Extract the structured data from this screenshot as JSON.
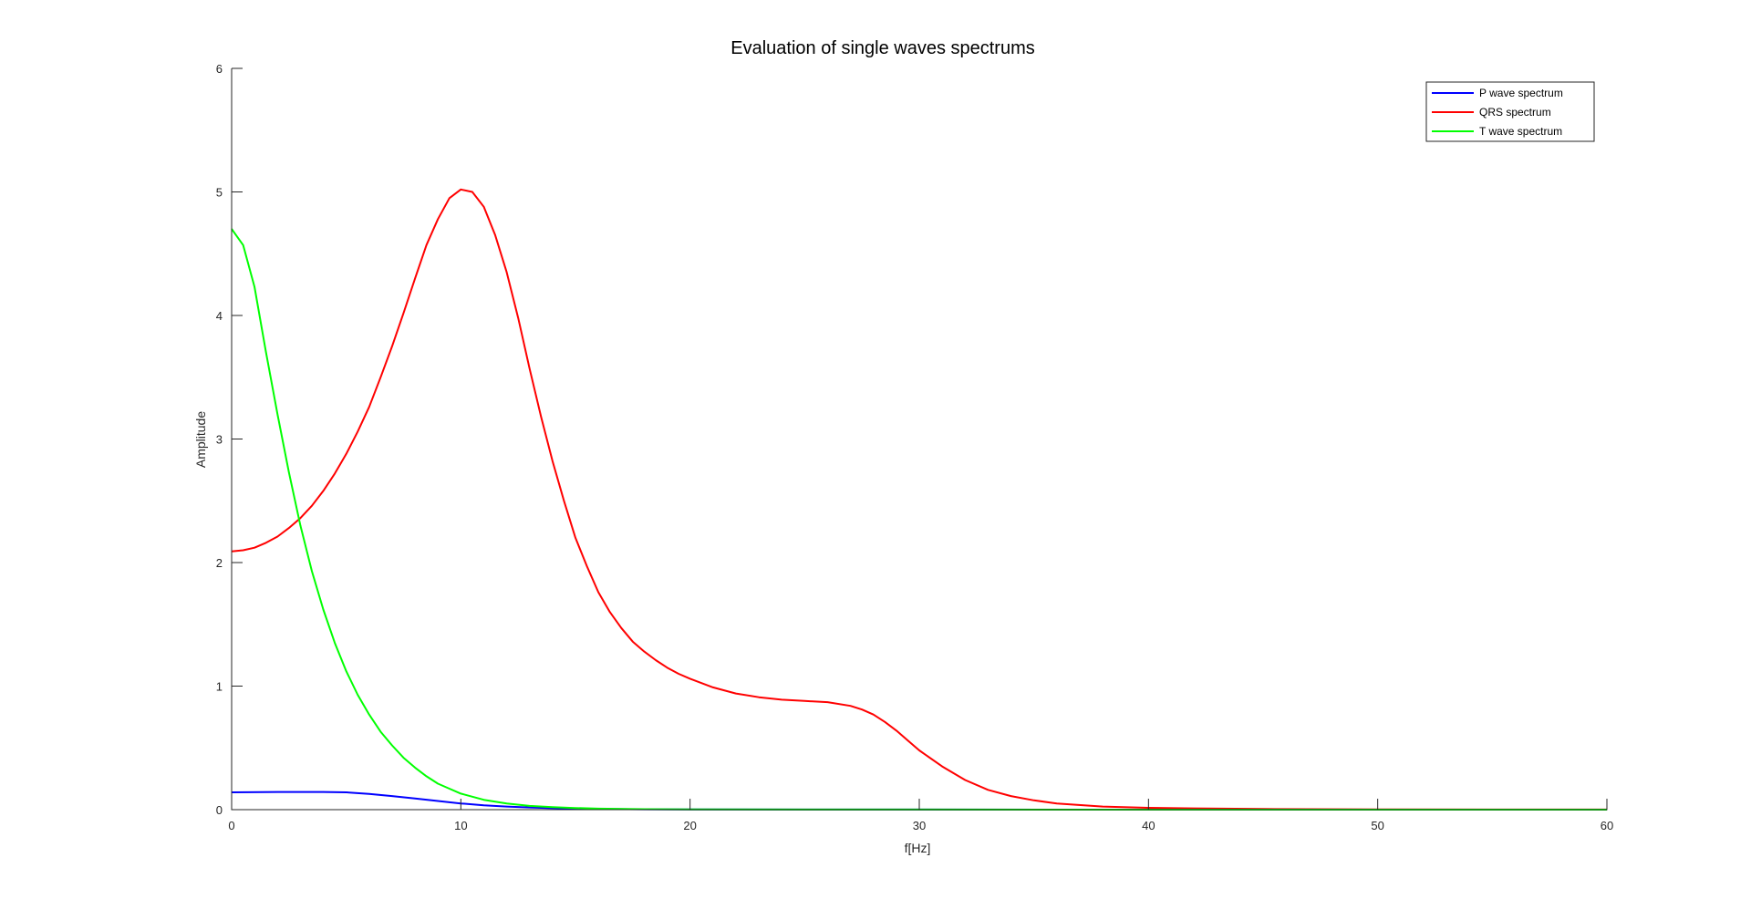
{
  "chart_data": {
    "type": "line",
    "title": "Evaluation of single waves spectrums",
    "xlabel": "f[Hz]",
    "ylabel": "Amplitude",
    "xlim": [
      0,
      60
    ],
    "ylim": [
      0,
      6
    ],
    "xticks": [
      0,
      10,
      20,
      30,
      40,
      50,
      60
    ],
    "yticks": [
      0,
      1,
      2,
      3,
      4,
      5,
      6
    ],
    "grid": false,
    "legend_position": "top-right",
    "series": [
      {
        "name": "P wave spectrum",
        "color": "#0000ff",
        "x": [
          0,
          2,
          4,
          5,
          6,
          7,
          8,
          9,
          10,
          11,
          12,
          13,
          14,
          15,
          16,
          18,
          20,
          25,
          30,
          40,
          50,
          60
        ],
        "y": [
          0.14,
          0.143,
          0.143,
          0.14,
          0.128,
          0.11,
          0.09,
          0.07,
          0.05,
          0.035,
          0.025,
          0.018,
          0.012,
          0.008,
          0.005,
          0.003,
          0.002,
          0.001,
          0.0005,
          0,
          0,
          0
        ]
      },
      {
        "name": "QRS spectrum",
        "color": "#ff0000",
        "x": [
          0,
          0.5,
          1,
          1.5,
          2,
          2.5,
          3,
          3.5,
          4,
          4.5,
          5,
          5.5,
          6,
          6.5,
          7,
          7.5,
          8,
          8.5,
          9,
          9.5,
          10,
          10.5,
          11,
          11.5,
          12,
          12.5,
          13,
          13.5,
          14,
          14.5,
          15,
          15.5,
          16,
          16.5,
          17,
          17.5,
          18,
          18.5,
          19,
          19.5,
          20,
          21,
          22,
          23,
          24,
          25,
          26,
          27,
          27.5,
          28,
          28.5,
          29,
          29.5,
          30,
          31,
          32,
          33,
          34,
          35,
          36,
          38,
          40,
          42,
          45,
          50,
          55,
          60
        ],
        "y": [
          2.09,
          2.1,
          2.12,
          2.16,
          2.21,
          2.28,
          2.36,
          2.46,
          2.58,
          2.72,
          2.88,
          3.06,
          3.26,
          3.5,
          3.75,
          4.02,
          4.3,
          4.57,
          4.78,
          4.95,
          5.02,
          5.0,
          4.88,
          4.65,
          4.35,
          3.98,
          3.57,
          3.18,
          2.82,
          2.5,
          2.2,
          1.97,
          1.76,
          1.6,
          1.47,
          1.36,
          1.28,
          1.21,
          1.15,
          1.1,
          1.06,
          0.99,
          0.94,
          0.91,
          0.89,
          0.88,
          0.87,
          0.84,
          0.81,
          0.77,
          0.71,
          0.64,
          0.56,
          0.48,
          0.35,
          0.24,
          0.16,
          0.11,
          0.075,
          0.05,
          0.025,
          0.015,
          0.01,
          0.005,
          0.002,
          0.001,
          0.0005
        ]
      },
      {
        "name": "T wave spectrum",
        "color": "#00ff00",
        "x": [
          0,
          0.5,
          1,
          1.5,
          2,
          2.5,
          3,
          3.5,
          4,
          4.5,
          5,
          5.5,
          6,
          6.5,
          7,
          7.5,
          8,
          8.5,
          9,
          9.5,
          10,
          11,
          12,
          13,
          14,
          15,
          16,
          18,
          20,
          25,
          30,
          40,
          50,
          60
        ],
        "y": [
          4.7,
          4.57,
          4.23,
          3.7,
          3.2,
          2.73,
          2.3,
          1.93,
          1.62,
          1.35,
          1.12,
          0.93,
          0.77,
          0.63,
          0.52,
          0.42,
          0.34,
          0.27,
          0.21,
          0.17,
          0.13,
          0.08,
          0.05,
          0.03,
          0.02,
          0.013,
          0.008,
          0.004,
          0.002,
          0.001,
          0.0005,
          0,
          0,
          0
        ]
      }
    ]
  }
}
